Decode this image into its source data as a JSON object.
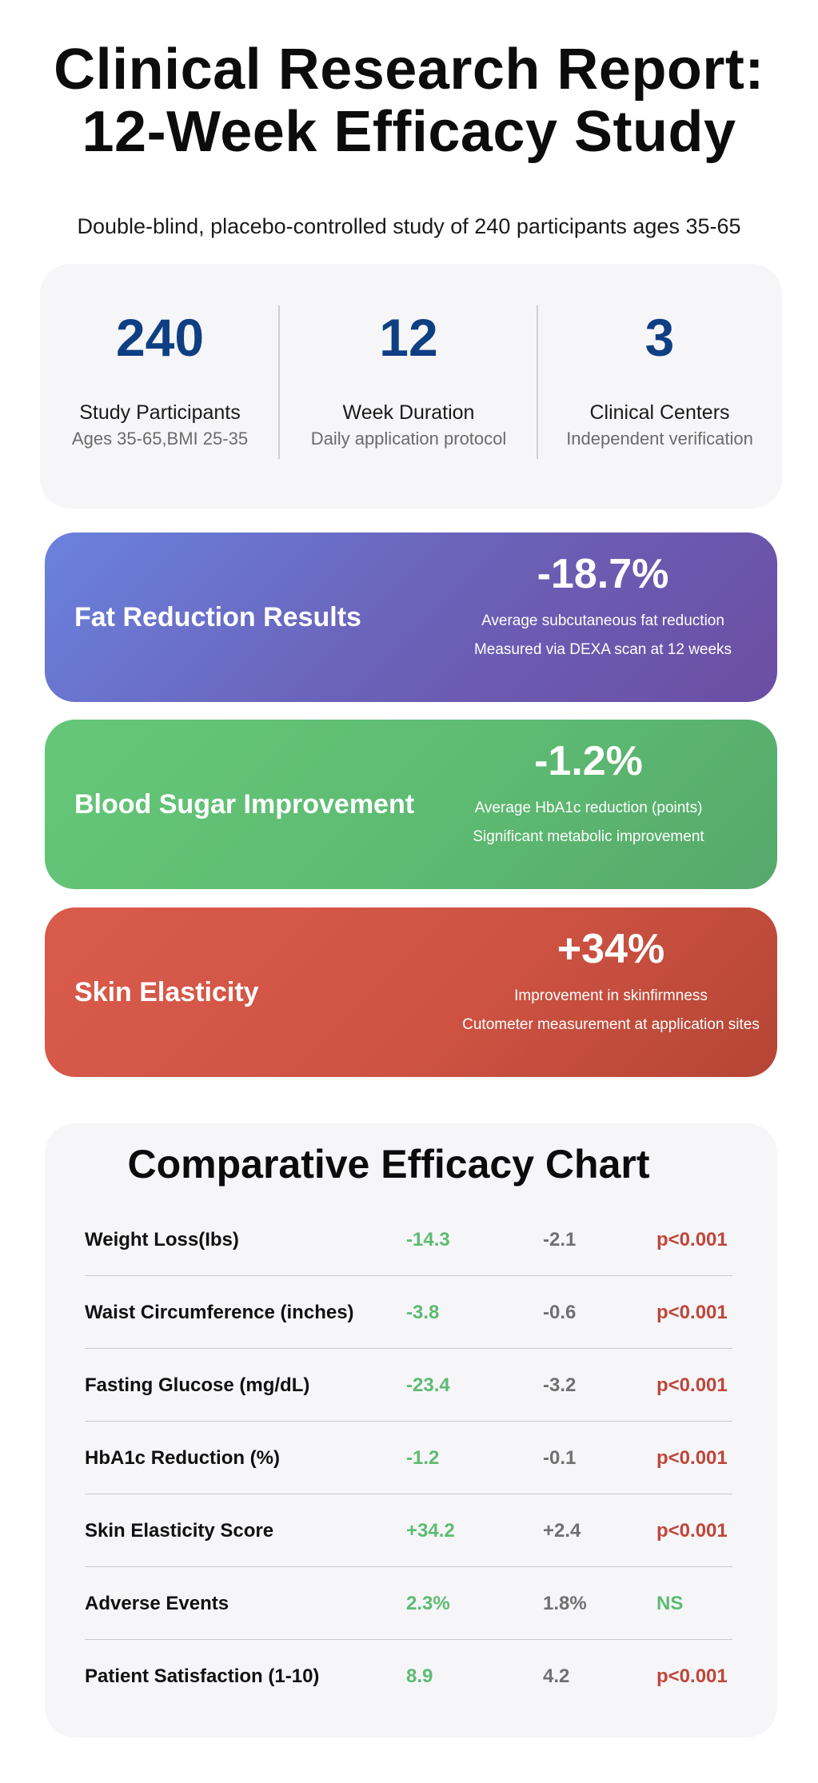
{
  "header": {
    "title_line1": "Clinical Research Report:",
    "title_line2": "12-Week Efficacy Study",
    "subtitle": "Double-blind, placebo-controlled study of 240 participants ages 35-65"
  },
  "stats": [
    {
      "value": "240",
      "label": "Study Participants",
      "sub": "Ages 35-65,BMI 25-35"
    },
    {
      "value": "12",
      "label": "Week Duration",
      "sub": "Daily application protocol"
    },
    {
      "value": "3",
      "label": "Clinical Centers",
      "sub": "Independent verification"
    }
  ],
  "results": [
    {
      "title": "Fat Reduction Results",
      "value": "-18.7%",
      "line1": "Average subcutaneous fat reduction",
      "line2": "Measured via DEXA scan at 12 weeks",
      "color": "#6b64bf"
    },
    {
      "title": "Blood Sugar Improvement",
      "value": "-1.2%",
      "line1": "Average HbA1c reduction (points)",
      "line2": "Significant metabolic improvement",
      "color": "#5dbb72"
    },
    {
      "title": "Skin Elasticity",
      "value": "+34%",
      "line1": "Improvement in skinfirmness",
      "line2": "Cutometer measurement at application sites",
      "color": "#cf5343"
    }
  ],
  "chart": {
    "title": "Comparative Efficacy Chart",
    "rows": [
      {
        "metric": "Weight Loss(Ibs)",
        "treatment": "-14.3",
        "placebo": "-2.1",
        "significance": "p<0.001",
        "sig_color": "#c0463a"
      },
      {
        "metric": "Waist Circumference (inches)",
        "treatment": "-3.8",
        "placebo": "-0.6",
        "significance": "p<0.001",
        "sig_color": "#c0463a"
      },
      {
        "metric": "Fasting Glucose (mg/dL)",
        "treatment": "-23.4",
        "placebo": "-3.2",
        "significance": "p<0.001",
        "sig_color": "#c0463a"
      },
      {
        "metric": "HbA1c Reduction (%)",
        "treatment": "-1.2",
        "placebo": "-0.1",
        "significance": "p<0.001",
        "sig_color": "#c0463a"
      },
      {
        "metric": "Skin Elasticity Score",
        "treatment": "+34.2",
        "placebo": "+2.4",
        "significance": "p<0.001",
        "sig_color": "#c0463a"
      },
      {
        "metric": "Adverse Events",
        "treatment": "2.3%",
        "placebo": "1.8%",
        "significance": "NS",
        "sig_color": "#5dbb72"
      },
      {
        "metric": "Patient Satisfaction (1-10)",
        "treatment": "8.9",
        "placebo": "4.2",
        "significance": "p<0.001",
        "sig_color": "#c0463a"
      }
    ]
  },
  "colors": {
    "stat_value": "#0f3f83",
    "treatment": "#5dbb72",
    "placebo": "#707070",
    "panel_bg": "#f6f6f8"
  }
}
